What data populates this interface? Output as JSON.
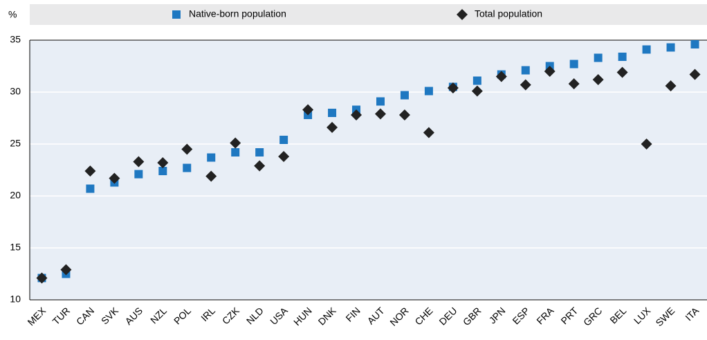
{
  "chart_data": {
    "type": "scatter",
    "y_label": "%",
    "categories": [
      "MEX",
      "TUR",
      "CAN",
      "SVK",
      "AUS",
      "NZL",
      "POL",
      "IRL",
      "CZK",
      "NLD",
      "USA",
      "HUN",
      "DNK",
      "FIN",
      "AUT",
      "NOR",
      "CHE",
      "DEU",
      "GBR",
      "JPN",
      "ESP",
      "FRA",
      "PRT",
      "GRC",
      "BEL",
      "LUX",
      "SWE",
      "ITA"
    ],
    "series": [
      {
        "name": "Native-born population",
        "color": "#1f78c1",
        "marker": "square",
        "values": [
          12.1,
          12.5,
          20.7,
          21.3,
          22.1,
          22.4,
          22.7,
          23.7,
          24.2,
          24.2,
          25.4,
          27.8,
          28.0,
          28.3,
          29.1,
          29.7,
          30.1,
          30.5,
          31.1,
          31.7,
          32.1,
          32.5,
          32.7,
          33.3,
          33.4,
          34.1,
          34.3,
          34.6
        ]
      },
      {
        "name": "Total population",
        "color": "#222222",
        "marker": "diamond",
        "values": [
          12.1,
          12.9,
          22.4,
          21.7,
          23.3,
          23.2,
          24.5,
          21.9,
          25.1,
          22.9,
          23.8,
          28.3,
          26.6,
          27.8,
          27.9,
          27.8,
          26.1,
          30.4,
          30.1,
          31.5,
          30.7,
          32.0,
          30.8,
          31.2,
          31.9,
          25.0,
          30.6,
          31.7
        ]
      }
    ],
    "ylim": [
      10,
      35
    ],
    "yticks": [
      10,
      15,
      20,
      25,
      30,
      35
    ],
    "grid": true
  }
}
